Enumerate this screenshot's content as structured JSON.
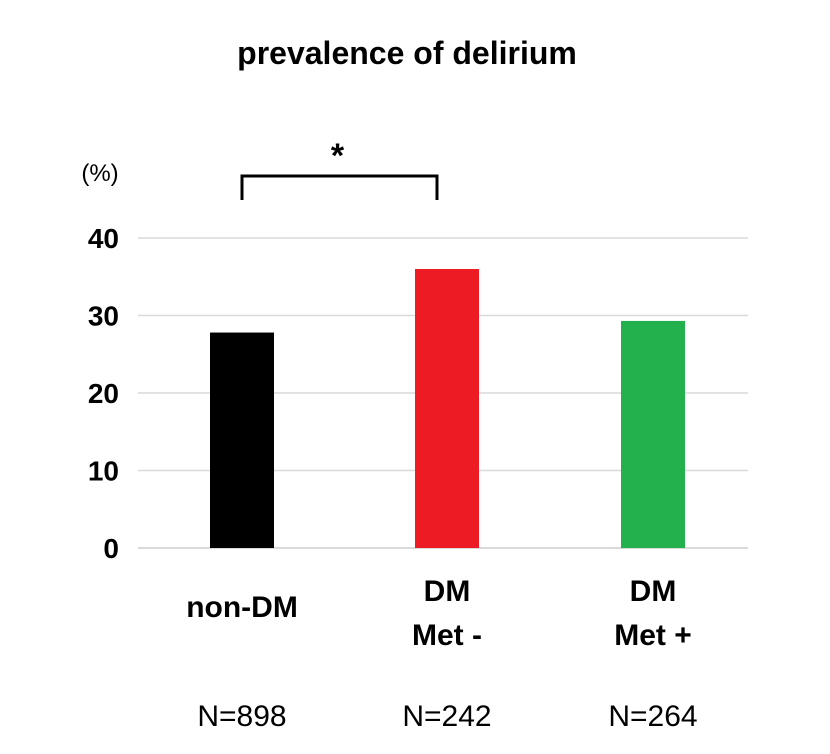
{
  "chart_data": {
    "type": "bar",
    "title": "prevalence of delirium",
    "ylabel": "(%)",
    "ylim": [
      0,
      40
    ],
    "yticks": [
      "0",
      "10",
      "20",
      "30",
      "40"
    ],
    "grid": true,
    "categories": [
      {
        "lines": [
          "non-DM"
        ],
        "n": "N=898"
      },
      {
        "lines": [
          "DM",
          "Met -"
        ],
        "n": "N=242"
      },
      {
        "lines": [
          "DM",
          "Met +"
        ],
        "n": "N=264"
      }
    ],
    "values": [
      27.8,
      36.0,
      29.3
    ],
    "colors": [
      "#000000",
      "#ed1c24",
      "#22b14c"
    ],
    "significance": {
      "from": 0,
      "to": 1,
      "label": "*"
    }
  }
}
